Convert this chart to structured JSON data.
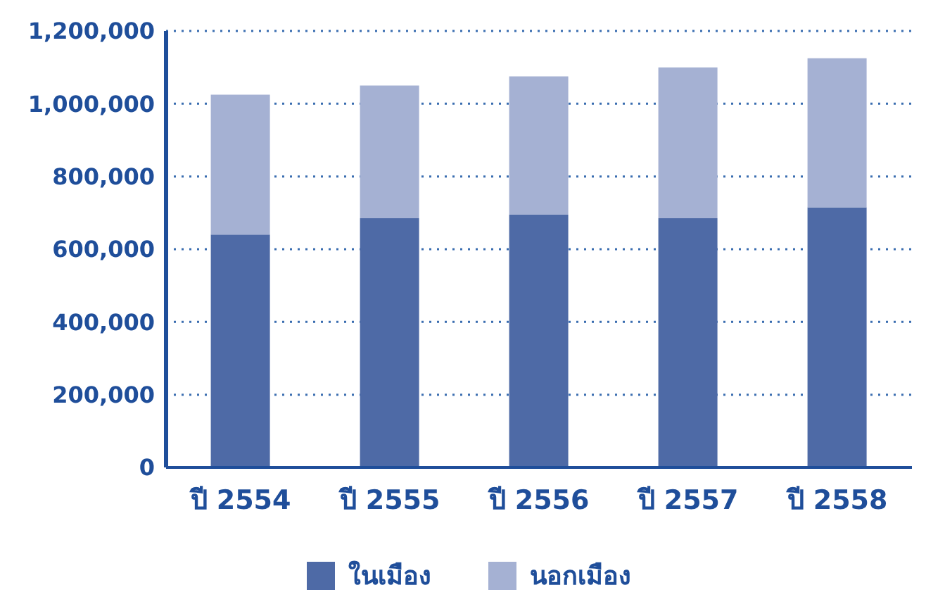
{
  "chart_data": {
    "type": "bar",
    "stacked": true,
    "categories": [
      "ปี 2554",
      "ปี 2555",
      "ปี 2556",
      "ปี 2557",
      "ปี 2558"
    ],
    "series": [
      {
        "name": "ในเมือง",
        "color": "#4e6aa6",
        "values": [
          640000,
          685000,
          695000,
          685000,
          715000
        ]
      },
      {
        "name": "นอกเมือง",
        "color": "#a5b1d3",
        "values": [
          385000,
          365000,
          380000,
          415000,
          410000
        ]
      }
    ],
    "ylim": [
      0,
      1200000
    ],
    "yticks": [
      0,
      {
        "value": 200000,
        "label": "200,000"
      },
      {
        "value": 400000,
        "label": "400,000"
      },
      {
        "value": 600000,
        "label": "600,000"
      },
      {
        "value": 800000,
        "label": "800,000"
      },
      {
        "value": 1000000,
        "label": "1,000,000"
      },
      {
        "value": 1200000,
        "label": "1,200,000"
      }
    ],
    "grid": "y",
    "legend": "bottom"
  }
}
